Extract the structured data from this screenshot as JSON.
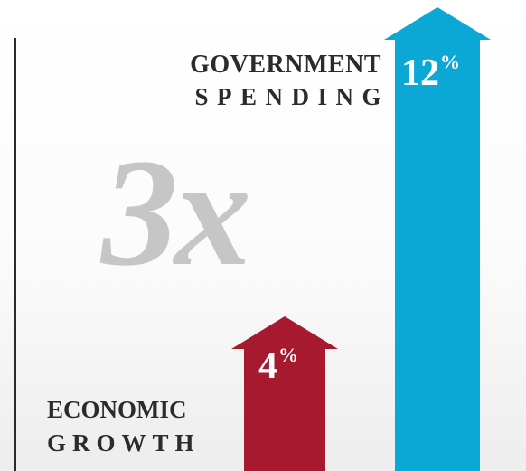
{
  "chart_data": {
    "type": "bar",
    "categories": [
      "ECONOMIC GROWTH",
      "GOVERNMENT SPENDING"
    ],
    "values": [
      4,
      12
    ],
    "series": [
      {
        "name_lines": [
          "ECONOMIC",
          "GROWTH"
        ],
        "value": 4,
        "label_number": "4",
        "label_unit": "%",
        "color": "#a6192e"
      },
      {
        "name_lines": [
          "GOVERNMENT",
          "SPENDING"
        ],
        "value": 12,
        "label_number": "12",
        "label_unit": "%",
        "color": "#0ba8d6"
      }
    ],
    "annotation": "3x",
    "ylim": [
      0,
      12
    ],
    "grid": false,
    "bar_shape": "arrow"
  },
  "colors": {
    "axis": "#2b2b2b",
    "multiplier_text": "#c6c6c6",
    "label_text": "#2b2b2b",
    "value_text": "#ffffff"
  }
}
